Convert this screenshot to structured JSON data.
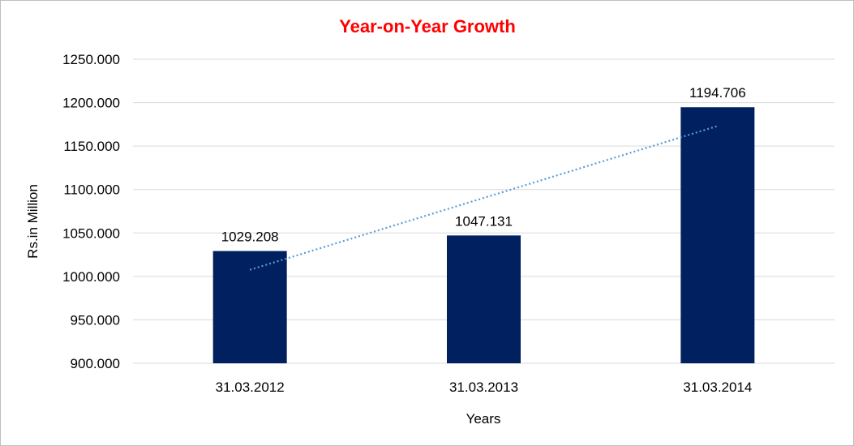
{
  "chart_data": {
    "type": "bar",
    "title": "Year-on-Year Growth",
    "xlabel": "Years",
    "ylabel": "Rs.in Million",
    "categories": [
      "31.03.2012",
      "31.03.2013",
      "31.03.2014"
    ],
    "values": [
      1029.208,
      1047.131,
      1194.706
    ],
    "data_labels": [
      "1029.208",
      "1047.131",
      "1194.706"
    ],
    "ylim": [
      900,
      1250
    ],
    "yticks": [
      900,
      950,
      1000,
      1050,
      1100,
      1150,
      1200,
      1250
    ],
    "ytick_labels": [
      "900.000",
      "950.000",
      "1000.000",
      "1050.000",
      "1100.000",
      "1150.000",
      "1200.000",
      "1250.000"
    ],
    "grid": true,
    "trendline": {
      "type": "linear",
      "style": "dotted"
    },
    "legend": "none",
    "colors": {
      "bar": "#002060",
      "trendline": "#5b9bd5",
      "title": "#ff0000",
      "grid": "#d9d9d9"
    }
  }
}
